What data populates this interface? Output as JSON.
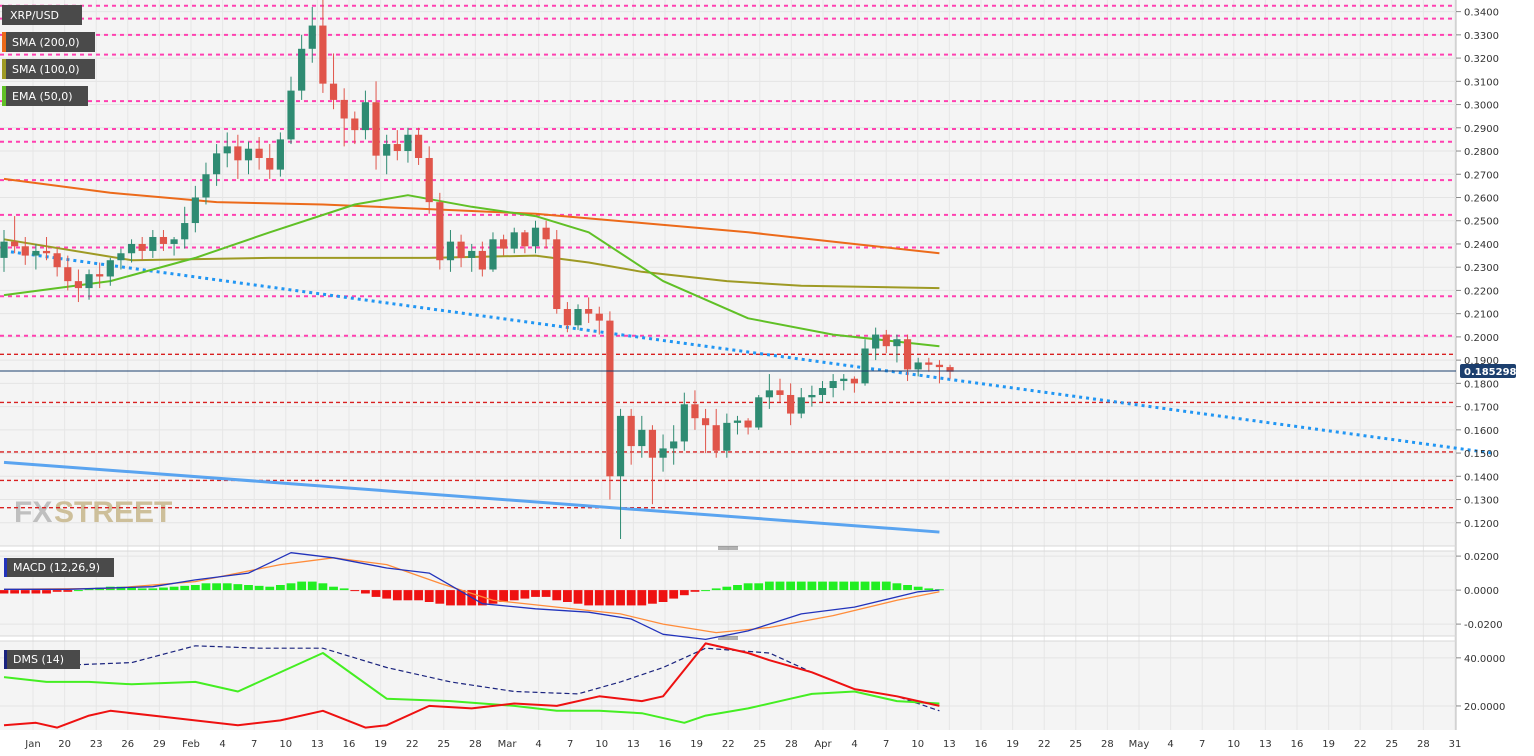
{
  "colors": {
    "background": "#f4f4f4",
    "bull": "#2e8b72",
    "bear": "#e0554a",
    "sma200": "#ec6a1a",
    "sma100": "#9e9a24",
    "ema50": "#60c026",
    "pinkLevel": "#ff40b0",
    "redLevel": "#d82020",
    "trendDotted": "#2196f3",
    "trendSolid": "#5aa4f0",
    "macdLine": "#2233bb",
    "signalLine": "#ff8c3a",
    "histPos": "#22ee22",
    "histNeg": "#ee1111",
    "dmsRed": "#ee1111",
    "dmsGreen": "#44ee22",
    "dmsBlue": "#1a237e",
    "priceTag": "#1c3f6e",
    "watermark": "#cdbf9a"
  },
  "legend": {
    "symbol": "XRP/USD",
    "sma200": "SMA (200,0)",
    "sma100": "SMA (100,0)",
    "ema50": "EMA (50,0)",
    "macd": "MACD (12,26,9)",
    "dms": "DMS (14)"
  },
  "watermark": {
    "fx": "FX",
    "street": "STREET"
  },
  "chart_data": [
    {
      "type": "candlestick",
      "title": "XRP/USD",
      "ylim": [
        0.11,
        0.345
      ],
      "y_ticks": [
        "0.3400",
        "0.3300",
        "0.3200",
        "0.3100",
        "0.3000",
        "0.2900",
        "0.2800",
        "0.2700",
        "0.2600",
        "0.2500",
        "0.2400",
        "0.2300",
        "0.2200",
        "0.2100",
        "0.2000",
        "0.1900",
        "0.1800",
        "0.1700",
        "0.1600",
        "0.1500",
        "0.1400",
        "0.1300",
        "0.1200"
      ],
      "current_price": "0.185298",
      "x_ticks": [
        "Jan",
        "20",
        "23",
        "26",
        "29",
        "Feb",
        "4",
        "7",
        "10",
        "13",
        "16",
        "19",
        "22",
        "25",
        "28",
        "Mar",
        "4",
        "7",
        "10",
        "13",
        "16",
        "19",
        "22",
        "25",
        "28",
        "Apr",
        "4",
        "7",
        "10",
        "13",
        "16",
        "19",
        "22",
        "25",
        "28",
        "May",
        "4",
        "7",
        "10",
        "13",
        "16",
        "19",
        "22",
        "25",
        "28",
        "31"
      ],
      "candles_ohlc": [
        [
          0.234,
          0.246,
          0.228,
          0.241
        ],
        [
          0.241,
          0.252,
          0.236,
          0.239
        ],
        [
          0.239,
          0.243,
          0.231,
          0.235
        ],
        [
          0.235,
          0.24,
          0.229,
          0.237
        ],
        [
          0.237,
          0.243,
          0.233,
          0.236
        ],
        [
          0.236,
          0.238,
          0.226,
          0.23
        ],
        [
          0.23,
          0.235,
          0.22,
          0.224
        ],
        [
          0.224,
          0.229,
          0.215,
          0.221
        ],
        [
          0.221,
          0.229,
          0.216,
          0.227
        ],
        [
          0.227,
          0.232,
          0.221,
          0.226
        ],
        [
          0.226,
          0.234,
          0.222,
          0.233
        ],
        [
          0.233,
          0.238,
          0.229,
          0.236
        ],
        [
          0.236,
          0.242,
          0.232,
          0.24
        ],
        [
          0.24,
          0.243,
          0.233,
          0.237
        ],
        [
          0.237,
          0.246,
          0.234,
          0.243
        ],
        [
          0.243,
          0.246,
          0.237,
          0.24
        ],
        [
          0.24,
          0.243,
          0.235,
          0.242
        ],
        [
          0.242,
          0.256,
          0.238,
          0.249
        ],
        [
          0.249,
          0.265,
          0.245,
          0.26
        ],
        [
          0.26,
          0.275,
          0.257,
          0.27
        ],
        [
          0.27,
          0.283,
          0.265,
          0.279
        ],
        [
          0.279,
          0.288,
          0.273,
          0.282
        ],
        [
          0.282,
          0.287,
          0.268,
          0.276
        ],
        [
          0.276,
          0.284,
          0.27,
          0.281
        ],
        [
          0.281,
          0.286,
          0.272,
          0.277
        ],
        [
          0.277,
          0.283,
          0.268,
          0.272
        ],
        [
          0.272,
          0.288,
          0.269,
          0.285
        ],
        [
          0.285,
          0.312,
          0.283,
          0.306
        ],
        [
          0.306,
          0.33,
          0.302,
          0.324
        ],
        [
          0.324,
          0.342,
          0.318,
          0.334
        ],
        [
          0.334,
          0.346,
          0.305,
          0.309
        ],
        [
          0.309,
          0.322,
          0.298,
          0.302
        ],
        [
          0.302,
          0.307,
          0.282,
          0.294
        ],
        [
          0.294,
          0.297,
          0.283,
          0.289
        ],
        [
          0.289,
          0.306,
          0.285,
          0.301
        ],
        [
          0.301,
          0.31,
          0.272,
          0.278
        ],
        [
          0.278,
          0.287,
          0.27,
          0.283
        ],
        [
          0.283,
          0.289,
          0.276,
          0.28
        ],
        [
          0.28,
          0.29,
          0.275,
          0.287
        ],
        [
          0.287,
          0.29,
          0.274,
          0.277
        ],
        [
          0.277,
          0.282,
          0.253,
          0.258
        ],
        [
          0.258,
          0.262,
          0.229,
          0.233
        ],
        [
          0.233,
          0.246,
          0.228,
          0.241
        ],
        [
          0.241,
          0.244,
          0.23,
          0.234
        ],
        [
          0.234,
          0.24,
          0.228,
          0.237
        ],
        [
          0.237,
          0.241,
          0.226,
          0.229
        ],
        [
          0.229,
          0.245,
          0.228,
          0.242
        ],
        [
          0.242,
          0.244,
          0.235,
          0.238
        ],
        [
          0.238,
          0.247,
          0.236,
          0.245
        ],
        [
          0.245,
          0.246,
          0.236,
          0.239
        ],
        [
          0.239,
          0.25,
          0.236,
          0.247
        ],
        [
          0.247,
          0.25,
          0.238,
          0.242
        ],
        [
          0.242,
          0.246,
          0.21,
          0.212
        ],
        [
          0.212,
          0.215,
          0.202,
          0.205
        ],
        [
          0.205,
          0.214,
          0.203,
          0.212
        ],
        [
          0.212,
          0.217,
          0.206,
          0.21
        ],
        [
          0.21,
          0.213,
          0.201,
          0.207
        ],
        [
          0.207,
          0.211,
          0.13,
          0.14
        ],
        [
          0.14,
          0.169,
          0.113,
          0.166
        ],
        [
          0.166,
          0.169,
          0.145,
          0.153
        ],
        [
          0.153,
          0.166,
          0.148,
          0.16
        ],
        [
          0.16,
          0.162,
          0.128,
          0.148
        ],
        [
          0.148,
          0.158,
          0.142,
          0.152
        ],
        [
          0.152,
          0.162,
          0.145,
          0.155
        ],
        [
          0.155,
          0.176,
          0.151,
          0.171
        ],
        [
          0.171,
          0.177,
          0.16,
          0.165
        ],
        [
          0.165,
          0.169,
          0.15,
          0.162
        ],
        [
          0.162,
          0.169,
          0.148,
          0.151
        ],
        [
          0.151,
          0.167,
          0.148,
          0.163
        ],
        [
          0.163,
          0.166,
          0.158,
          0.164
        ],
        [
          0.164,
          0.165,
          0.158,
          0.161
        ],
        [
          0.161,
          0.175,
          0.16,
          0.174
        ],
        [
          0.174,
          0.184,
          0.169,
          0.177
        ],
        [
          0.177,
          0.182,
          0.172,
          0.175
        ],
        [
          0.175,
          0.18,
          0.162,
          0.167
        ],
        [
          0.167,
          0.178,
          0.165,
          0.174
        ],
        [
          0.174,
          0.179,
          0.17,
          0.175
        ],
        [
          0.175,
          0.181,
          0.172,
          0.178
        ],
        [
          0.178,
          0.184,
          0.174,
          0.181
        ],
        [
          0.181,
          0.184,
          0.177,
          0.182
        ],
        [
          0.182,
          0.183,
          0.176,
          0.18
        ],
        [
          0.18,
          0.199,
          0.179,
          0.195
        ],
        [
          0.195,
          0.204,
          0.19,
          0.201
        ],
        [
          0.201,
          0.203,
          0.193,
          0.196
        ],
        [
          0.196,
          0.201,
          0.189,
          0.199
        ],
        [
          0.199,
          0.201,
          0.181,
          0.186
        ],
        [
          0.186,
          0.191,
          0.183,
          0.189
        ],
        [
          0.189,
          0.191,
          0.185,
          0.188
        ],
        [
          0.188,
          0.19,
          0.18,
          0.187
        ],
        [
          0.187,
          0.188,
          0.182,
          0.185
        ]
      ],
      "sma200": [
        [
          0,
          0.268
        ],
        [
          10,
          0.262
        ],
        [
          20,
          0.258
        ],
        [
          30,
          0.257
        ],
        [
          40,
          0.255
        ],
        [
          50,
          0.253
        ],
        [
          60,
          0.249
        ],
        [
          70,
          0.245
        ],
        [
          80,
          0.24
        ],
        [
          88,
          0.236
        ]
      ],
      "sma100": [
        [
          0,
          0.242
        ],
        [
          12,
          0.233
        ],
        [
          25,
          0.234
        ],
        [
          40,
          0.234
        ],
        [
          50,
          0.235
        ],
        [
          55,
          0.232
        ],
        [
          60,
          0.228
        ],
        [
          68,
          0.224
        ],
        [
          75,
          0.222
        ],
        [
          88,
          0.221
        ]
      ],
      "ema50": [
        [
          0,
          0.218
        ],
        [
          10,
          0.224
        ],
        [
          18,
          0.234
        ],
        [
          25,
          0.245
        ],
        [
          33,
          0.257
        ],
        [
          38,
          0.261
        ],
        [
          44,
          0.256
        ],
        [
          50,
          0.252
        ],
        [
          55,
          0.245
        ],
        [
          62,
          0.224
        ],
        [
          70,
          0.208
        ],
        [
          78,
          0.201
        ],
        [
          88,
          0.196
        ]
      ],
      "pink_levels": [
        0.3425,
        0.337,
        0.33,
        0.3215,
        0.3015,
        0.2895,
        0.284,
        0.2675,
        0.2525,
        0.2385,
        0.2175,
        0.2005
      ],
      "red_levels": [
        0.1925,
        0.1718,
        0.1505,
        0.1382,
        0.1265
      ],
      "trend_dotted": [
        [
          0,
          0.237
        ],
        [
          140,
          0.15
        ]
      ],
      "trend_solid": [
        [
          0,
          0.146
        ],
        [
          88,
          0.116
        ]
      ]
    },
    {
      "type": "line",
      "title": "MACD (12,26,9)",
      "ylim": [
        -0.027,
        0.023
      ],
      "y_ticks": [
        "0.0200",
        "0.0000",
        "-0.0200"
      ],
      "macd": [
        [
          0,
          0.0005
        ],
        [
          6,
          0.0005
        ],
        [
          14,
          0.002
        ],
        [
          18,
          0.006
        ],
        [
          23,
          0.01
        ],
        [
          27,
          0.022
        ],
        [
          31,
          0.019
        ],
        [
          36,
          0.013
        ],
        [
          40,
          0.01
        ],
        [
          45,
          -0.008
        ],
        [
          50,
          -0.011
        ],
        [
          55,
          -0.013
        ],
        [
          59,
          -0.017
        ],
        [
          62,
          -0.026
        ],
        [
          66,
          -0.029
        ],
        [
          70,
          -0.024
        ],
        [
          75,
          -0.014
        ],
        [
          80,
          -0.01
        ],
        [
          86,
          -0.001
        ],
        [
          88,
          0
        ]
      ],
      "signal": [
        [
          0,
          0.0005
        ],
        [
          10,
          0.001
        ],
        [
          18,
          0.005
        ],
        [
          26,
          0.015
        ],
        [
          31,
          0.019
        ],
        [
          36,
          0.015
        ],
        [
          41,
          0.004
        ],
        [
          46,
          -0.006
        ],
        [
          52,
          -0.01
        ],
        [
          58,
          -0.014
        ],
        [
          62,
          -0.02
        ],
        [
          67,
          -0.025
        ],
        [
          72,
          -0.022
        ],
        [
          78,
          -0.015
        ],
        [
          84,
          -0.006
        ],
        [
          88,
          -0.001
        ]
      ],
      "histogram": [
        -0.002,
        -0.002,
        -0.002,
        -0.002,
        -0.002,
        -0.001,
        -0.001,
        0,
        0.001,
        0.0015,
        0.002,
        0.002,
        0.0015,
        0.001,
        0.001,
        0.0015,
        0.002,
        0.0025,
        0.003,
        0.004,
        0.004,
        0.004,
        0.0035,
        0.003,
        0.0025,
        0.002,
        0.003,
        0.004,
        0.005,
        0.005,
        0.004,
        0.002,
        0.001,
        -0.0005,
        -0.002,
        -0.004,
        -0.005,
        -0.006,
        -0.006,
        -0.006,
        -0.007,
        -0.008,
        -0.009,
        -0.009,
        -0.009,
        -0.009,
        -0.008,
        -0.007,
        -0.006,
        -0.005,
        -0.004,
        -0.004,
        -0.006,
        -0.007,
        -0.008,
        -0.009,
        -0.009,
        -0.009,
        -0.009,
        -0.009,
        -0.009,
        -0.008,
        -0.007,
        -0.005,
        -0.003,
        -0.001,
        0,
        0.001,
        0.002,
        0.003,
        0.004,
        0.004,
        0.005,
        0.005,
        0.005,
        0.005,
        0.005,
        0.005,
        0.005,
        0.005,
        0.005,
        0.005,
        0.005,
        0.005,
        0.004,
        0.003,
        0.002,
        0.001,
        0.0005
      ]
    },
    {
      "type": "line",
      "title": "DMS (14)",
      "ylim": [
        10,
        47
      ],
      "y_ticks": [
        "40.0000",
        "20.0000"
      ],
      "red": [
        [
          0,
          12
        ],
        [
          3,
          13
        ],
        [
          5,
          11
        ],
        [
          8,
          16
        ],
        [
          10,
          18
        ],
        [
          16,
          15
        ],
        [
          22,
          12
        ],
        [
          26,
          14
        ],
        [
          30,
          18
        ],
        [
          34,
          11
        ],
        [
          36,
          12
        ],
        [
          40,
          20
        ],
        [
          44,
          19
        ],
        [
          48,
          21
        ],
        [
          52,
          20
        ],
        [
          56,
          24
        ],
        [
          60,
          22
        ],
        [
          62,
          24
        ],
        [
          66,
          46
        ],
        [
          70,
          42
        ],
        [
          72,
          39
        ],
        [
          76,
          34
        ],
        [
          80,
          27
        ],
        [
          84,
          24
        ],
        [
          86,
          22
        ],
        [
          88,
          20
        ]
      ],
      "green": [
        [
          0,
          32
        ],
        [
          4,
          30
        ],
        [
          8,
          30
        ],
        [
          12,
          29
        ],
        [
          18,
          30
        ],
        [
          22,
          26
        ],
        [
          30,
          42
        ],
        [
          36,
          23
        ],
        [
          42,
          22
        ],
        [
          48,
          20
        ],
        [
          52,
          18
        ],
        [
          56,
          18
        ],
        [
          60,
          17
        ],
        [
          64,
          13
        ],
        [
          66,
          16
        ],
        [
          70,
          19
        ],
        [
          74,
          23
        ],
        [
          76,
          25
        ],
        [
          80,
          26
        ],
        [
          84,
          22
        ],
        [
          88,
          21
        ]
      ],
      "blue": [
        [
          0,
          38
        ],
        [
          6,
          37
        ],
        [
          12,
          38
        ],
        [
          18,
          45
        ],
        [
          24,
          44
        ],
        [
          30,
          44
        ],
        [
          36,
          36
        ],
        [
          42,
          30
        ],
        [
          48,
          26
        ],
        [
          54,
          25
        ],
        [
          58,
          30
        ],
        [
          62,
          36
        ],
        [
          66,
          44
        ],
        [
          72,
          42
        ],
        [
          76,
          34
        ],
        [
          80,
          27
        ],
        [
          84,
          24
        ],
        [
          88,
          18
        ]
      ]
    }
  ]
}
